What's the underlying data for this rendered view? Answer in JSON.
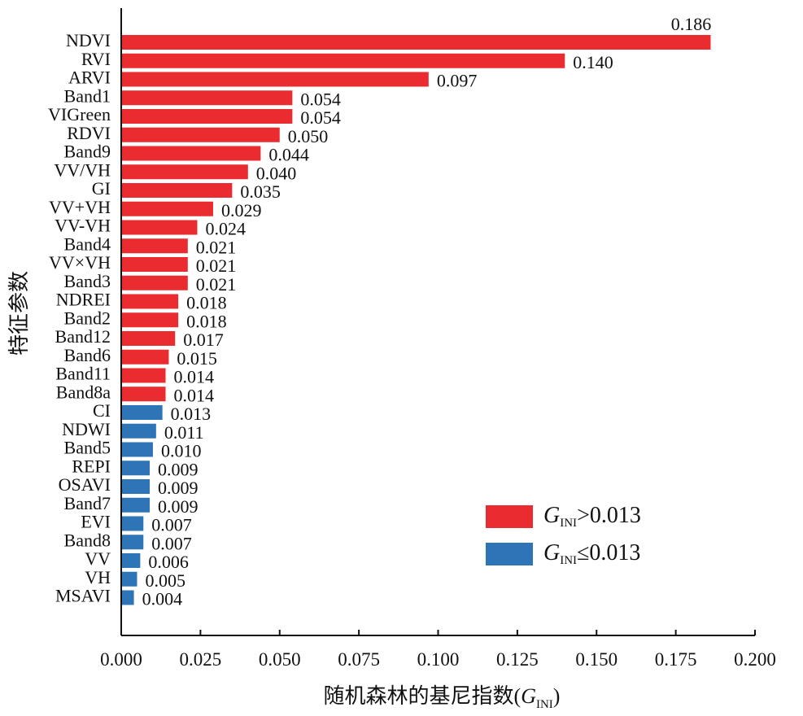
{
  "chart_data": {
    "type": "bar",
    "orientation": "horizontal",
    "xlabel_prefix": "随机森林的基尼指数(",
    "xlabel_symbol": "G",
    "xlabel_subscript": "INI",
    "xlabel_suffix": ")",
    "ylabel": "特征参数",
    "xlim": [
      0,
      0.2
    ],
    "xticks": [
      "0.000",
      "0.025",
      "0.050",
      "0.075",
      "0.100",
      "0.125",
      "0.150",
      "0.175",
      "0.200"
    ],
    "threshold": 0.013,
    "colors": {
      "high": "#ea2b2f",
      "low": "#2d75b6"
    },
    "legend": [
      {
        "symbol": "G",
        "subscript": "INI",
        "text": ">0.013",
        "color": "#ea2b2f"
      },
      {
        "symbol": "G",
        "subscript": "INI",
        "text": "≤0.013",
        "color": "#2d75b6"
      }
    ],
    "bars": [
      {
        "label": "NDVI",
        "value": 0.186,
        "display": "0.186",
        "group": "high"
      },
      {
        "label": "RVI",
        "value": 0.14,
        "display": "0.140",
        "group": "high"
      },
      {
        "label": "ARVI",
        "value": 0.097,
        "display": "0.097",
        "group": "high"
      },
      {
        "label": "Band1",
        "value": 0.054,
        "display": "0.054",
        "group": "high"
      },
      {
        "label": "VIGreen",
        "value": 0.054,
        "display": "0.054",
        "group": "high"
      },
      {
        "label": "RDVI",
        "value": 0.05,
        "display": "0.050",
        "group": "high"
      },
      {
        "label": "Band9",
        "value": 0.044,
        "display": "0.044",
        "group": "high"
      },
      {
        "label": "VV/VH",
        "value": 0.04,
        "display": "0.040",
        "group": "high"
      },
      {
        "label": "GI",
        "value": 0.035,
        "display": "0.035",
        "group": "high"
      },
      {
        "label": "VV+VH",
        "value": 0.029,
        "display": "0.029",
        "group": "high"
      },
      {
        "label": "VV-VH",
        "value": 0.024,
        "display": "0.024",
        "group": "high"
      },
      {
        "label": "Band4",
        "value": 0.021,
        "display": "0.021",
        "group": "high"
      },
      {
        "label": "VV×VH",
        "value": 0.021,
        "display": "0.021",
        "group": "high"
      },
      {
        "label": "Band3",
        "value": 0.021,
        "display": "0.021",
        "group": "high"
      },
      {
        "label": "NDREI",
        "value": 0.018,
        "display": "0.018",
        "group": "high"
      },
      {
        "label": "Band2",
        "value": 0.018,
        "display": "0.018",
        "group": "high"
      },
      {
        "label": "Band12",
        "value": 0.017,
        "display": "0.017",
        "group": "high"
      },
      {
        "label": "Band6",
        "value": 0.015,
        "display": "0.015",
        "group": "high"
      },
      {
        "label": "Band11",
        "value": 0.014,
        "display": "0.014",
        "group": "high"
      },
      {
        "label": "Band8a",
        "value": 0.014,
        "display": "0.014",
        "group": "high"
      },
      {
        "label": "CI",
        "value": 0.013,
        "display": "0.013",
        "group": "low"
      },
      {
        "label": "NDWI",
        "value": 0.011,
        "display": "0.011",
        "group": "low"
      },
      {
        "label": "Band5",
        "value": 0.01,
        "display": "0.010",
        "group": "low"
      },
      {
        "label": "REPI",
        "value": 0.009,
        "display": "0.009",
        "group": "low"
      },
      {
        "label": "OSAVI",
        "value": 0.009,
        "display": "0.009",
        "group": "low"
      },
      {
        "label": "Band7",
        "value": 0.009,
        "display": "0.009",
        "group": "low"
      },
      {
        "label": "EVI",
        "value": 0.007,
        "display": "0.007",
        "group": "low"
      },
      {
        "label": "Band8",
        "value": 0.007,
        "display": "0.007",
        "group": "low"
      },
      {
        "label": "VV",
        "value": 0.006,
        "display": "0.006",
        "group": "low"
      },
      {
        "label": "VH",
        "value": 0.005,
        "display": "0.005",
        "group": "low"
      },
      {
        "label": "MSAVI",
        "value": 0.004,
        "display": "0.004",
        "group": "low"
      }
    ]
  }
}
